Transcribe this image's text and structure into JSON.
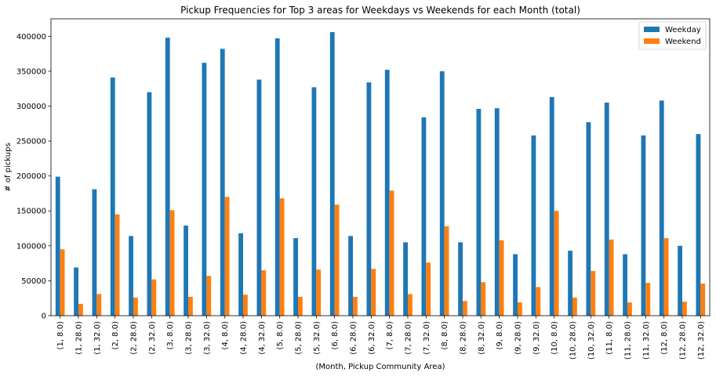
{
  "chart_data": {
    "type": "bar",
    "title": "Pickup Frequencies for Top 3 areas for Weekdays vs Weekends for each Month (total)",
    "xlabel": "(Month, Pickup Community Area)",
    "ylabel": "# of pickups",
    "ylim": [
      0,
      425000
    ],
    "yticks": [
      0,
      50000,
      100000,
      150000,
      200000,
      250000,
      300000,
      350000,
      400000
    ],
    "ytick_labels": [
      "0",
      "50000",
      "100000",
      "150000",
      "200000",
      "250000",
      "300000",
      "350000",
      "400000"
    ],
    "grid": false,
    "legend_position": "top-right",
    "categories": [
      "(1, 8.0)",
      "(1, 28.0)",
      "(1, 32.0)",
      "(2, 8.0)",
      "(2, 28.0)",
      "(2, 32.0)",
      "(3, 8.0)",
      "(3, 28.0)",
      "(3, 32.0)",
      "(4, 8.0)",
      "(4, 28.0)",
      "(4, 32.0)",
      "(5, 8.0)",
      "(5, 28.0)",
      "(5, 32.0)",
      "(6, 8.0)",
      "(6, 28.0)",
      "(6, 32.0)",
      "(7, 8.0)",
      "(7, 28.0)",
      "(7, 32.0)",
      "(8, 8.0)",
      "(8, 28.0)",
      "(8, 32.0)",
      "(9, 8.0)",
      "(9, 28.0)",
      "(9, 32.0)",
      "(10, 8.0)",
      "(10, 28.0)",
      "(10, 32.0)",
      "(11, 8.0)",
      "(11, 28.0)",
      "(11, 32.0)",
      "(12, 8.0)",
      "(12, 28.0)",
      "(12, 32.0)"
    ],
    "series": [
      {
        "name": "Weekday",
        "color": "#1f77b4",
        "values": [
          199000,
          69000,
          181000,
          341000,
          114000,
          320000,
          398000,
          129000,
          362000,
          382000,
          118000,
          338000,
          397000,
          111000,
          327000,
          406000,
          114000,
          334000,
          352000,
          105000,
          284000,
          350000,
          105000,
          296000,
          297000,
          88000,
          258000,
          313000,
          93000,
          277000,
          305000,
          88000,
          258000,
          308000,
          100000,
          260000
        ]
      },
      {
        "name": "Weekend",
        "color": "#ff7f0e",
        "values": [
          95000,
          17000,
          31000,
          145000,
          26000,
          52000,
          151000,
          27000,
          57000,
          170000,
          30000,
          65000,
          168000,
          27000,
          66000,
          159000,
          27000,
          67000,
          179000,
          31000,
          76000,
          128000,
          21000,
          48000,
          108000,
          19000,
          41000,
          150000,
          26000,
          64000,
          109000,
          19000,
          47000,
          111000,
          20000,
          46000
        ]
      }
    ]
  }
}
